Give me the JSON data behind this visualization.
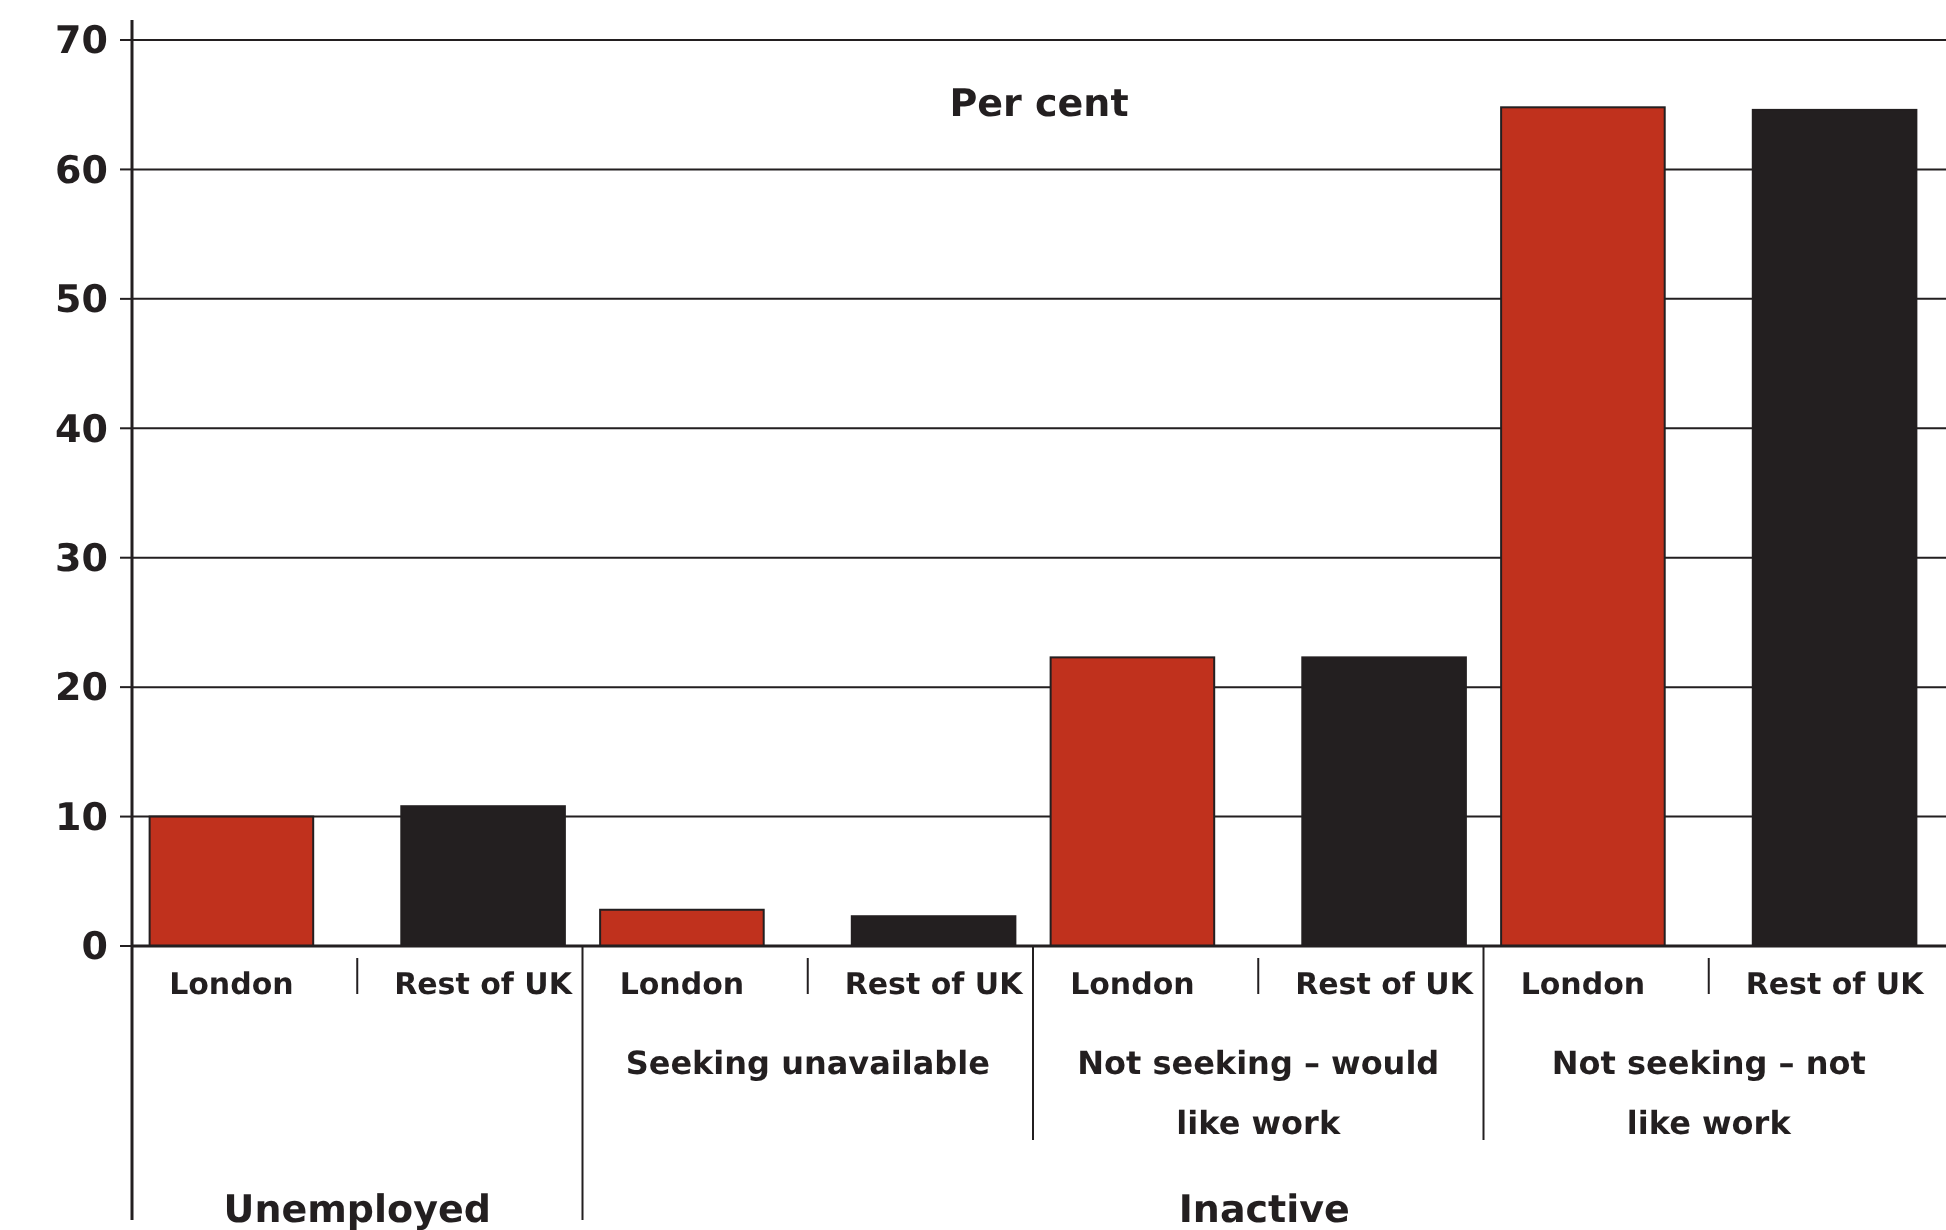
{
  "chart_data": {
    "type": "bar",
    "ylabel": "Per cent",
    "categories": [
      null,
      "Seeking unavailable",
      "Not seeking – would like work",
      "Not seeking – not like work"
    ],
    "series": [
      {
        "name": "London",
        "color": "#c0311d",
        "values": [
          10,
          2.8,
          22.3,
          64.8
        ]
      },
      {
        "name": "Rest of UK",
        "color": "#231f20",
        "values": [
          10.8,
          2.3,
          22.3,
          64.6
        ]
      }
    ],
    "ylim": [
      0,
      70
    ],
    "yticks": [
      0,
      10,
      20,
      30,
      40,
      50,
      60,
      70
    ],
    "grid": "y",
    "annotations": [
      "Unemployed",
      "Inactive"
    ]
  }
}
